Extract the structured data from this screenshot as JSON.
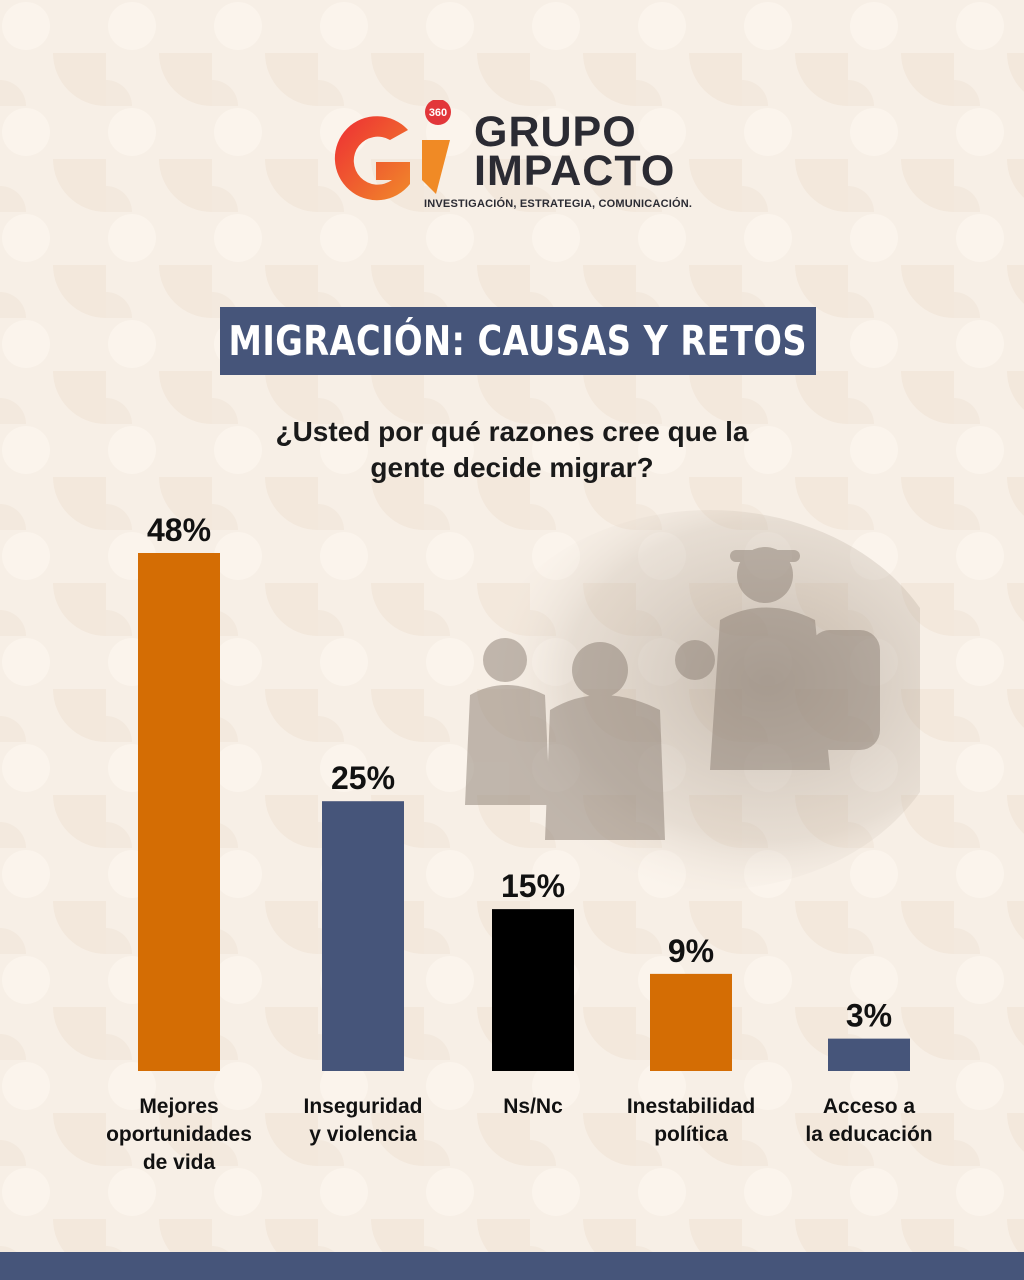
{
  "brand": {
    "badge": "360",
    "name_line1": "GRUPO",
    "name_line2": "IMPACTO",
    "tagline": "INVESTIGACIÓN, ESTRATEGIA, COMUNICACIÓN."
  },
  "title": "MIGRACIÓN: CAUSAS Y RETOS",
  "question": {
    "line1": "¿Usted por qué razones cree que la",
    "line2": "gente decide migrar?"
  },
  "colors": {
    "orange": "#d46d04",
    "navy": "#46557a",
    "black": "#000000",
    "background": "#f7efe6"
  },
  "chart_data": {
    "type": "bar",
    "categories": [
      [
        "Mejores",
        "oportunidades",
        "de vida"
      ],
      [
        "Inseguridad",
        "y violencia"
      ],
      [
        "Ns/Nc"
      ],
      [
        "Inestabilidad",
        "política"
      ],
      [
        "Acceso a",
        "la educación"
      ]
    ],
    "values": [
      48,
      25,
      15,
      9,
      3
    ],
    "data_labels": [
      "48%",
      "25%",
      "15%",
      "9%",
      "3%"
    ],
    "bar_colors": [
      "#d46d04",
      "#46557a",
      "#000000",
      "#d46d04",
      "#46557a"
    ],
    "title": "",
    "xlabel": "",
    "ylabel": "",
    "ylim": [
      0,
      48
    ],
    "unit": "%",
    "grid": false,
    "legend": "none"
  }
}
